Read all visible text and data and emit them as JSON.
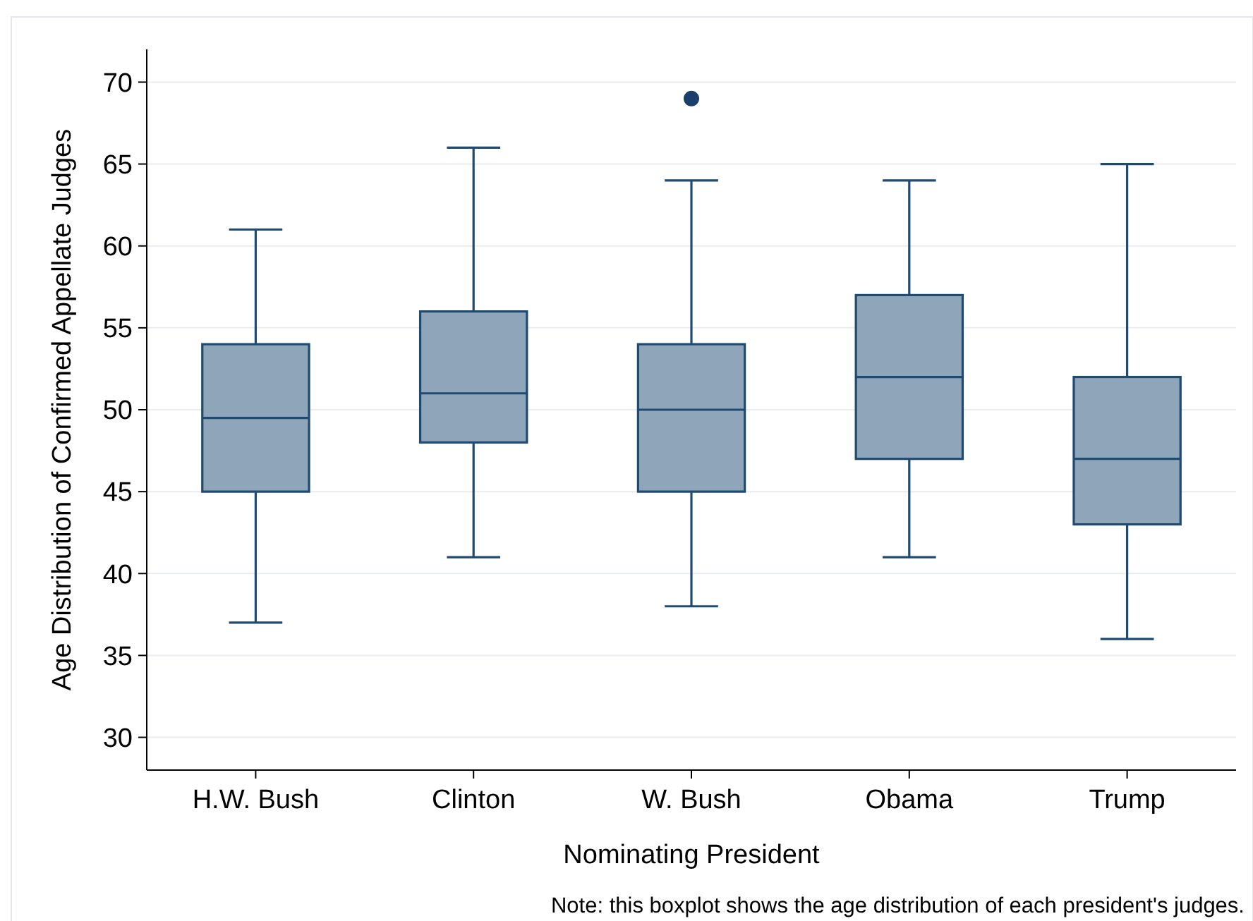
{
  "chart_data": {
    "type": "box",
    "xlabel": "Nominating President",
    "ylabel": "Age Distribution of Confirmed Appellate Judges",
    "categories": [
      "H.W. Bush",
      "Clinton",
      "W. Bush",
      "Obama",
      "Trump"
    ],
    "boxes": [
      {
        "low": 37,
        "q1": 45,
        "median": 49.5,
        "q3": 54,
        "high": 61
      },
      {
        "low": 41,
        "q1": 48,
        "median": 51,
        "q3": 56,
        "high": 66
      },
      {
        "low": 38,
        "q1": 45,
        "median": 50,
        "q3": 54,
        "high": 64,
        "outliers": [
          69
        ]
      },
      {
        "low": 41,
        "q1": 47,
        "median": 52,
        "q3": 57,
        "high": 64
      },
      {
        "low": 36,
        "q1": 43,
        "median": 47,
        "q3": 52,
        "high": 65
      }
    ],
    "color": "#8fa5ba",
    "ylim": [
      28,
      72
    ],
    "yticks": [
      30,
      35,
      40,
      45,
      50,
      55,
      60,
      65,
      70
    ],
    "grid": "y",
    "annotations": [
      "Note: this boxplot shows the age distribution of each president's judges."
    ]
  }
}
